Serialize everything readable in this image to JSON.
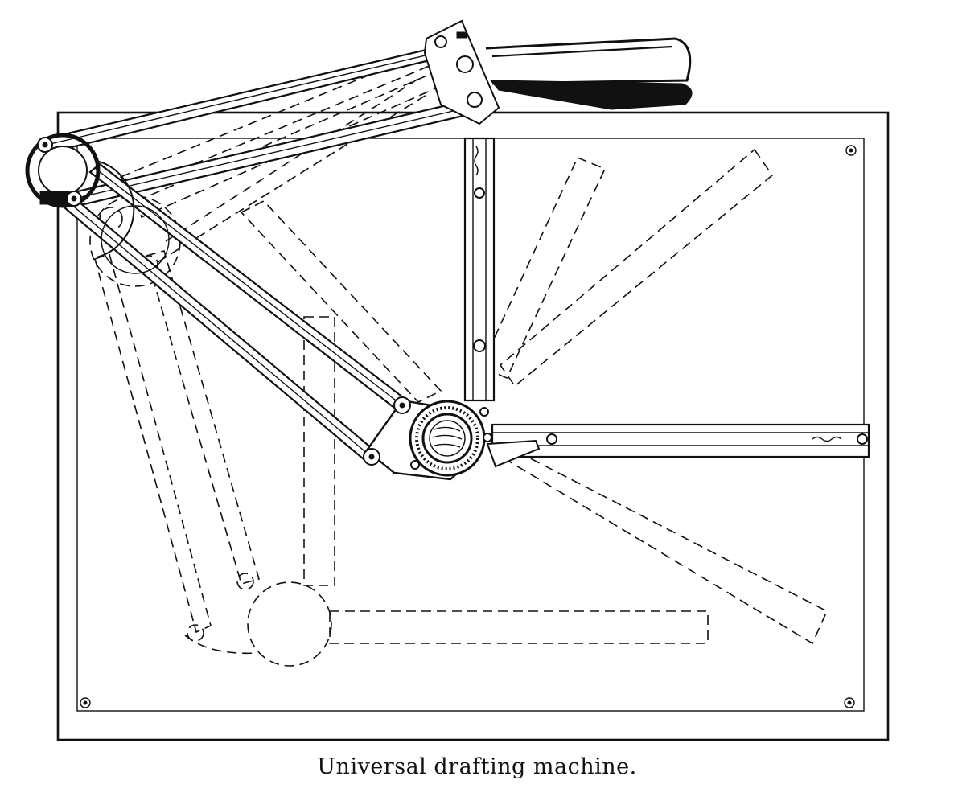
{
  "caption": "Universal drafting machine.",
  "colors": {
    "ink": "#111111",
    "paper": "#ffffff"
  },
  "icons": [
    "screw-icon",
    "clamp-icon",
    "protractor-dial-icon"
  ]
}
